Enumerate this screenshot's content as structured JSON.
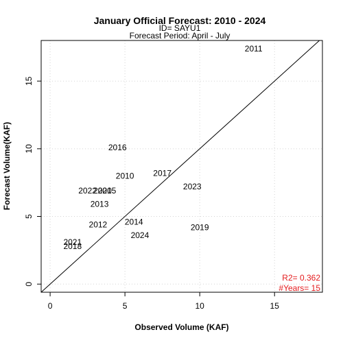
{
  "chart_data": {
    "type": "scatter",
    "title": "January Official Forecast: 2010 - 2024",
    "subtitle_id": "ID= SAYU1",
    "subtitle_period": "Forecast Period:  April - July",
    "xlabel": "Observed Volume (KAF)",
    "ylabel": "Forecast Volume(KAF)",
    "xlim": [
      -0.6,
      18.2
    ],
    "ylim": [
      -0.6,
      18.0
    ],
    "xticks": [
      0,
      5,
      10,
      15
    ],
    "yticks": [
      0,
      5,
      10,
      15
    ],
    "grid": true,
    "reference_line": "1:1",
    "points": [
      {
        "label": "2010",
        "x": 5.0,
        "y": 8.0
      },
      {
        "label": "2011",
        "x": 13.6,
        "y": 17.4
      },
      {
        "label": "2012",
        "x": 3.2,
        "y": 4.4
      },
      {
        "label": "2013",
        "x": 3.3,
        "y": 5.9
      },
      {
        "label": "2014",
        "x": 5.6,
        "y": 4.6
      },
      {
        "label": "2015",
        "x": 3.8,
        "y": 6.9
      },
      {
        "label": "2016",
        "x": 4.5,
        "y": 10.1
      },
      {
        "label": "2017",
        "x": 7.5,
        "y": 8.2
      },
      {
        "label": "2018",
        "x": 1.5,
        "y": 2.8
      },
      {
        "label": "2019",
        "x": 10.0,
        "y": 4.2
      },
      {
        "label": "2020",
        "x": 3.5,
        "y": 6.9
      },
      {
        "label": "2021",
        "x": 1.5,
        "y": 3.1
      },
      {
        "label": "2022",
        "x": 2.5,
        "y": 6.9
      },
      {
        "label": "2023",
        "x": 9.5,
        "y": 7.2
      },
      {
        "label": "2024",
        "x": 6.0,
        "y": 3.6
      }
    ],
    "stats": {
      "r2": "R2=  0.362",
      "years": "#Years=  15"
    }
  },
  "colors": {
    "stats": "#e41a1c",
    "grid": "#d3d3d3",
    "axis": "#000000"
  }
}
